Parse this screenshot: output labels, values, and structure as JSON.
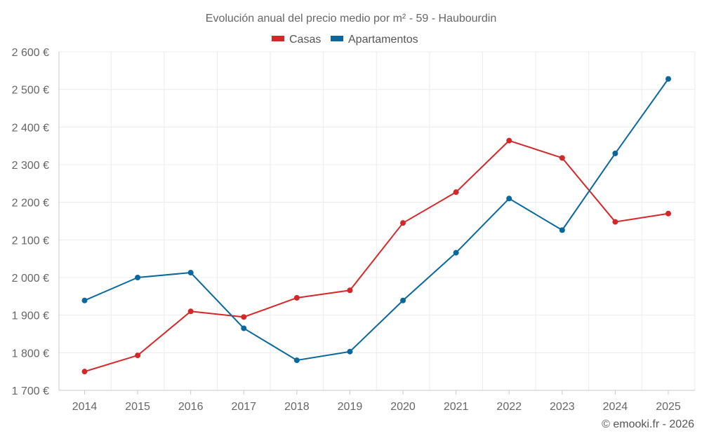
{
  "chart_data": {
    "type": "line",
    "title": "Evolución anual del precio medio por m² - 59 - Haubourdin",
    "categories": [
      "2014",
      "2015",
      "2016",
      "2017",
      "2018",
      "2019",
      "2020",
      "2021",
      "2022",
      "2023",
      "2024",
      "2025"
    ],
    "series": [
      {
        "name": "Casas",
        "color": "#d62728",
        "values": [
          1750,
          1793,
          1910,
          1895,
          1946,
          1966,
          2145,
          2227,
          2364,
          2318,
          2148,
          2170
        ]
      },
      {
        "name": "Apartamentos",
        "color": "#08679c",
        "values": [
          1939,
          2000,
          2013,
          1865,
          1780,
          1803,
          1939,
          2066,
          2210,
          2126,
          2330,
          2528
        ]
      }
    ],
    "ylim": [
      1700,
      2600
    ],
    "yticks": [
      1700,
      1800,
      1900,
      2000,
      2100,
      2200,
      2300,
      2400,
      2500,
      2600
    ],
    "ytick_labels": [
      "1 700 €",
      "1 800 €",
      "1 900 €",
      "2 000 €",
      "2 100 €",
      "2 200 €",
      "2 300 €",
      "2 400 €",
      "2 500 €",
      "2 600 €"
    ],
    "xlabel": "",
    "ylabel": "",
    "legend_position": "top-center",
    "grid": true
  },
  "credit": "© emooki.fr - 2026"
}
